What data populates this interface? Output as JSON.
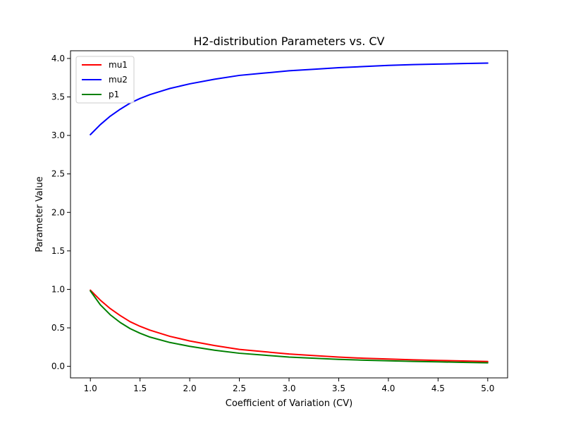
{
  "chart_data": {
    "type": "line",
    "title": "H2-distribution Parameters vs. CV",
    "xlabel": "Coefficient of Variation (CV)",
    "ylabel": "Parameter Value",
    "xlim": [
      0.8,
      5.2
    ],
    "ylim": [
      -0.15,
      4.1
    ],
    "x_ticks": [
      1.0,
      1.5,
      2.0,
      2.5,
      3.0,
      3.5,
      4.0,
      4.5,
      5.0
    ],
    "x_tick_labels": [
      "1.0",
      "1.5",
      "2.0",
      "2.5",
      "3.0",
      "3.5",
      "4.0",
      "4.5",
      "5.0"
    ],
    "y_ticks": [
      0.0,
      0.5,
      1.0,
      1.5,
      2.0,
      2.5,
      3.0,
      3.5,
      4.0
    ],
    "y_tick_labels": [
      "0.0",
      "0.5",
      "1.0",
      "1.5",
      "2.0",
      "2.5",
      "3.0",
      "3.5",
      "4.0"
    ],
    "grid": false,
    "legend_position": "top-left",
    "x": [
      1.0,
      1.1,
      1.2,
      1.3,
      1.4,
      1.5,
      1.6,
      1.8,
      2.0,
      2.25,
      2.5,
      2.75,
      3.0,
      3.25,
      3.5,
      3.75,
      4.0,
      4.25,
      4.5,
      4.75,
      5.0
    ],
    "series": [
      {
        "name": "mu1",
        "color": "#ff0000",
        "values": [
          0.99,
          0.86,
          0.75,
          0.66,
          0.58,
          0.52,
          0.47,
          0.39,
          0.33,
          0.27,
          0.22,
          0.19,
          0.16,
          0.14,
          0.12,
          0.105,
          0.095,
          0.085,
          0.077,
          0.07,
          0.063
        ]
      },
      {
        "name": "mu2",
        "color": "#0000ff",
        "values": [
          3.01,
          3.14,
          3.25,
          3.34,
          3.42,
          3.48,
          3.53,
          3.61,
          3.67,
          3.73,
          3.78,
          3.81,
          3.84,
          3.86,
          3.88,
          3.895,
          3.91,
          3.92,
          3.927,
          3.934,
          3.94
        ]
      },
      {
        "name": "p1",
        "color": "#008000",
        "values": [
          0.98,
          0.8,
          0.67,
          0.57,
          0.49,
          0.43,
          0.38,
          0.31,
          0.26,
          0.21,
          0.17,
          0.145,
          0.12,
          0.105,
          0.09,
          0.08,
          0.072,
          0.064,
          0.058,
          0.052,
          0.046
        ]
      }
    ]
  }
}
